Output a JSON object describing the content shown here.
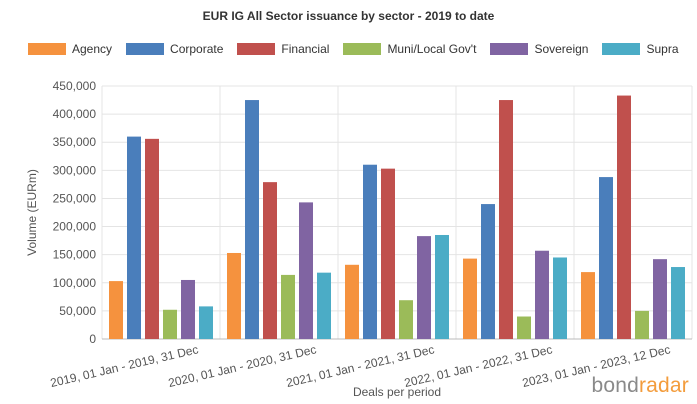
{
  "chart_data": {
    "type": "bar",
    "title": "EUR IG All Sector issuance by sector - 2019 to date",
    "xlabel": "Deals per period",
    "ylabel": "Volume (EURm)",
    "ylim": [
      0,
      450000
    ],
    "yticks": [
      "0",
      "50,000",
      "100,000",
      "150,000",
      "200,000",
      "250,000",
      "300,000",
      "350,000",
      "400,000",
      "450,000"
    ],
    "categories": [
      "2019, 01 Jan - 2019, 31 Dec",
      "2020, 01 Jan - 2020, 31 Dec",
      "2021, 01 Jan - 2021, 31 Dec",
      "2022, 01 Jan - 2022, 31 Dec",
      "2023, 01 Jan - 2023, 12 Dec"
    ],
    "series": [
      {
        "name": "Agency",
        "color": "#f5923e",
        "values": [
          103000,
          153000,
          132000,
          143000,
          119000
        ]
      },
      {
        "name": "Corporate",
        "color": "#4a7ebb",
        "values": [
          360000,
          425000,
          310000,
          240000,
          288000
        ]
      },
      {
        "name": "Financial",
        "color": "#c0504d",
        "values": [
          356000,
          279000,
          303000,
          425000,
          433000
        ]
      },
      {
        "name": "Muni/Local Gov't",
        "color": "#9bbb59",
        "values": [
          52000,
          114000,
          69000,
          40000,
          50000
        ]
      },
      {
        "name": "Sovereign",
        "color": "#8064a2",
        "values": [
          105000,
          243000,
          183000,
          157000,
          142000
        ]
      },
      {
        "name": "Supra",
        "color": "#4bacc6",
        "values": [
          58000,
          118000,
          185000,
          145000,
          128000
        ]
      }
    ],
    "grid": true,
    "legend_position": "top"
  },
  "branding": {
    "part1": "bond",
    "part2": "radar"
  }
}
